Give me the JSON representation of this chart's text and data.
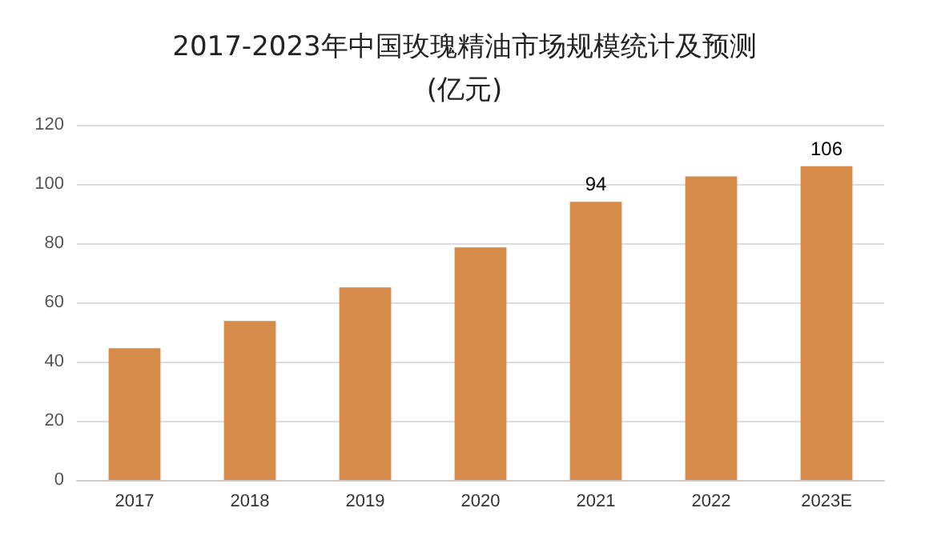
{
  "chart_data": {
    "type": "bar",
    "title": "2017-2023年中国玫瑰精油市场规模统计及预测",
    "subtitle": "(亿元)",
    "categories": [
      "2017",
      "2018",
      "2019",
      "2020",
      "2021",
      "2022",
      "2023E"
    ],
    "values": [
      44.5,
      53.7,
      65.1,
      78.6,
      94,
      102.6,
      106
    ],
    "value_labels": [
      null,
      null,
      null,
      null,
      "94",
      null,
      "106"
    ],
    "color": "#d68b4b",
    "ylim": [
      0,
      120
    ],
    "yticks": [
      0,
      20,
      40,
      60,
      80,
      100,
      120
    ],
    "grid": "y"
  }
}
